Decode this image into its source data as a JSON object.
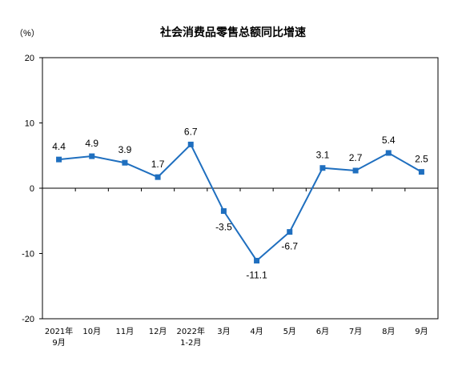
{
  "chart_data": {
    "type": "line",
    "title": "社会消费品零售总额同比增速",
    "unit_label": "（%）",
    "ylim": [
      -20,
      20
    ],
    "yticks": [
      "20",
      "10",
      "0",
      "-10",
      "-20"
    ],
    "grid": false,
    "categories": [
      [
        "2021年",
        "9月"
      ],
      [
        "10月"
      ],
      [
        "11月"
      ],
      [
        "12月"
      ],
      [
        "2022年",
        "1-2月"
      ],
      [
        "3月"
      ],
      [
        "4月"
      ],
      [
        "5月"
      ],
      [
        "6月"
      ],
      [
        "7月"
      ],
      [
        "8月"
      ],
      [
        "9月"
      ]
    ],
    "values": [
      4.4,
      4.9,
      3.9,
      1.7,
      6.7,
      -3.5,
      -11.1,
      -6.7,
      3.1,
      2.7,
      5.4,
      2.5
    ],
    "data_labels": [
      "4.4",
      "4.9",
      "3.9",
      "1.7",
      "6.7",
      "-3.5",
      "-11.1",
      "-6.7",
      "3.1",
      "2.7",
      "5.4",
      "2.5"
    ],
    "line_color": "#1f6fbf",
    "marker": "square"
  }
}
